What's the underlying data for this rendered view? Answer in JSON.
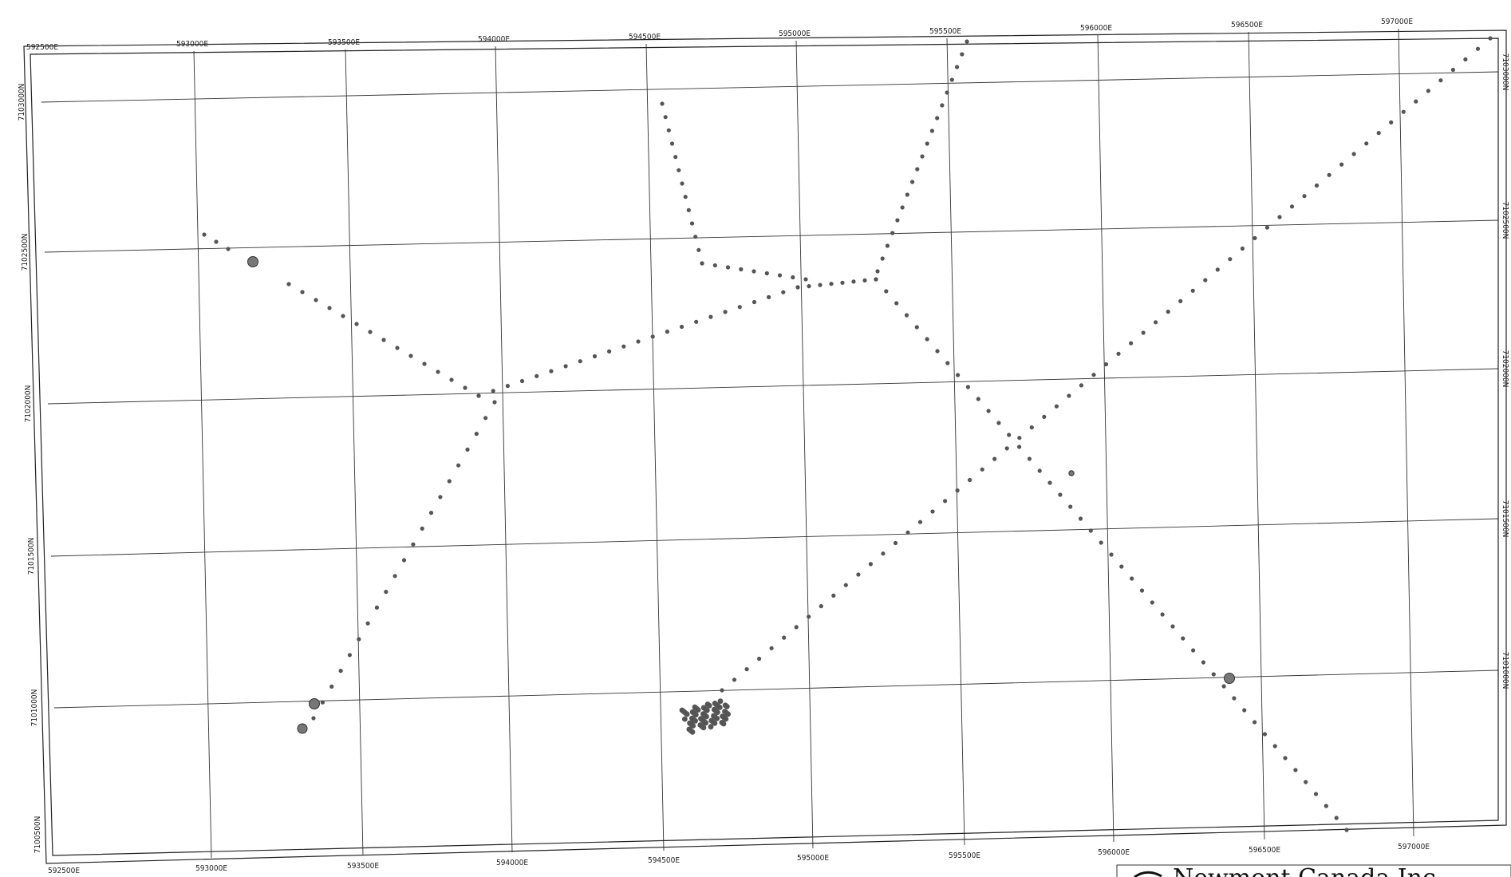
{
  "map": {
    "top_easting": [
      "592500E",
      "593000E",
      "593500E",
      "594000E",
      "594500E",
      "595000E",
      "595500E",
      "596000E",
      "596500E",
      "597000E"
    ],
    "bottom_easting": [
      "592500E",
      "593000E",
      "593500E",
      "594000E",
      "594500E",
      "595000E",
      "595500E",
      "596000E",
      "596500E",
      "597000E"
    ],
    "left_northing": [
      "7103000N",
      "7102500N",
      "7102000N",
      "7101500N",
      "7101000N",
      "7100500N"
    ],
    "right_northing": [
      "7103000N",
      "7102500N",
      "7102000N",
      "7101500N",
      "7101000N"
    ],
    "point_color": "#555555",
    "line_color": "#333333"
  },
  "brand": {
    "label": "Newmont Canada Inc."
  }
}
